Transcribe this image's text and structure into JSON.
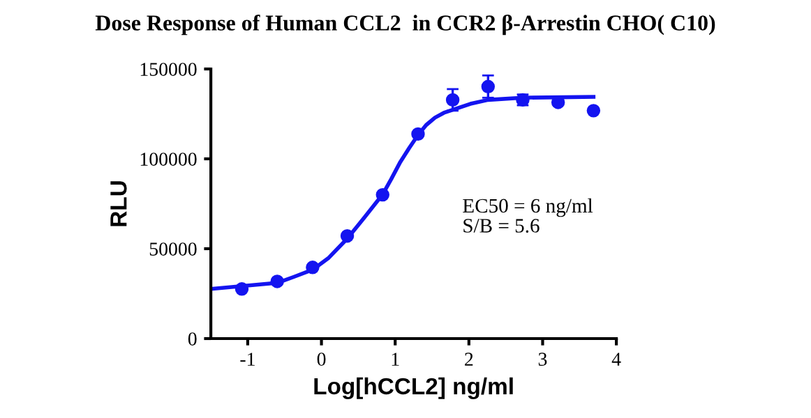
{
  "chart_data": {
    "type": "scatter",
    "title": "Dose Response of Human CCL2  in CCR2 β-Arrestin CHO( C10)",
    "xlabel": "Log[hCCL2] ng/ml",
    "ylabel": "RLU",
    "xlim": [
      -1.5,
      4
    ],
    "xticks": [
      -1,
      0,
      1,
      2,
      3,
      4
    ],
    "ylim": [
      0,
      150000
    ],
    "yticks": [
      0,
      50000,
      100000,
      150000
    ],
    "grid": false,
    "annotations": [
      "EC50 = 6 ng/ml",
      "S/B = 5.6"
    ],
    "series": [
      {
        "marker": "circle",
        "color": "#1414f0",
        "x": [
          -1.08,
          -0.6,
          -0.12,
          0.35,
          0.83,
          1.31,
          1.78,
          2.26,
          2.73,
          3.21,
          3.69
        ],
        "values": [
          27600,
          31800,
          39600,
          57100,
          80000,
          113800,
          132800,
          140200,
          132800,
          131400,
          126800
        ],
        "errors": [
          null,
          null,
          null,
          null,
          null,
          null,
          6000,
          6200,
          3000,
          null,
          null
        ]
      },
      {
        "type": "line",
        "color": "#1414f0",
        "line_style": "solid",
        "x": [
          -1.5,
          -0.6,
          -0.37,
          -0.12,
          0.1,
          0.35,
          0.58,
          0.83,
          0.95,
          1.07,
          1.19,
          1.31,
          1.42,
          1.54,
          1.66,
          1.78,
          2.02,
          2.26,
          2.73,
          3.69
        ],
        "values": [
          27600,
          31000,
          34400,
          38300,
          45000,
          55600,
          67200,
          80200,
          89000,
          98300,
          106000,
          113300,
          118800,
          122900,
          125600,
          127300,
          130600,
          132800,
          134000,
          134500
        ]
      }
    ]
  }
}
